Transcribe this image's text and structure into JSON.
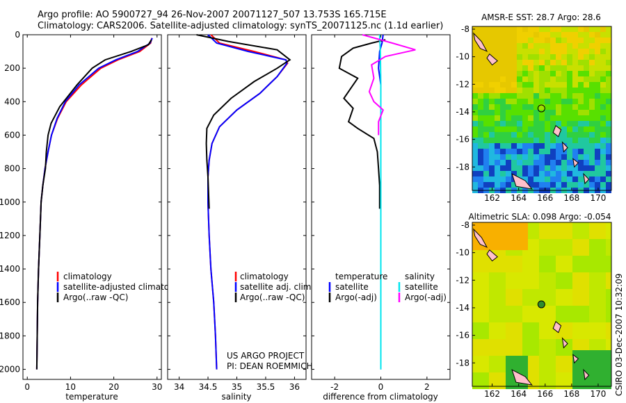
{
  "header": {
    "line1": "Argo profile: AO 5900727_94 26-Nov-2007 20071127_507 13.753S 165.715E",
    "line2": "Climatology: CARS2006. Satellite-adjusted climatology: synTS_20071125.nc (1.1d earlier)"
  },
  "colors": {
    "climatology": "#ff0000",
    "satellite": "#0000ff",
    "argo": "#000000",
    "salinity_satellite": "#00e5ee",
    "salinity_argo": "#ff00ff",
    "land": "#ffc0cb"
  },
  "chart_data": [
    {
      "type": "line",
      "xlabel": "temperature",
      "xlim": [
        -1,
        31
      ],
      "xticks": [
        0,
        10,
        20,
        30
      ],
      "ylim": [
        2060,
        0
      ],
      "yticks": [
        0,
        200,
        400,
        600,
        800,
        1000,
        1200,
        1400,
        1600,
        1800,
        2000
      ],
      "legend": [
        "climatology",
        "satellite-adjusted climatolog",
        "Argo(..raw -QC)"
      ],
      "series": [
        {
          "name": "climatology",
          "color": "#ff0000",
          "x": [
            28.8,
            28.5,
            26.0,
            21.0,
            17.0,
            12.5,
            9.0,
            7.0,
            5.6,
            4.8,
            4.1,
            3.6,
            3.2,
            2.9,
            2.6,
            2.4,
            2.3,
            2.2
          ],
          "y": [
            20,
            50,
            100,
            150,
            200,
            300,
            400,
            500,
            600,
            700,
            800,
            900,
            1000,
            1200,
            1400,
            1600,
            1800,
            2000
          ]
        },
        {
          "name": "satellite-adjusted climatolog",
          "color": "#0000ff",
          "x": [
            28.9,
            28.4,
            25.5,
            20.5,
            16.5,
            12.0,
            8.8,
            6.9,
            5.6,
            4.8,
            4.1,
            3.6,
            3.2,
            2.9,
            2.6,
            2.4,
            2.3,
            2.2
          ],
          "y": [
            20,
            50,
            100,
            150,
            200,
            300,
            400,
            500,
            600,
            700,
            800,
            900,
            1000,
            1200,
            1400,
            1600,
            1800,
            2000
          ]
        },
        {
          "name": "Argo(..raw -QC)",
          "color": "#000000",
          "x": [
            28.7,
            28.0,
            24.0,
            18.0,
            15.0,
            11.5,
            7.5,
            5.5,
            4.8,
            4.4,
            4.2,
            3.6,
            3.2,
            2.9,
            2.6,
            2.4,
            2.3,
            2.2
          ],
          "y": [
            30,
            60,
            100,
            150,
            200,
            300,
            430,
            530,
            600,
            700,
            800,
            900,
            1000,
            1200,
            1400,
            1600,
            1800,
            2000
          ]
        }
      ]
    },
    {
      "type": "line",
      "xlabel": "salinity",
      "xlim": [
        33.8,
        36.2
      ],
      "xticks": [
        34,
        34.5,
        35,
        35.5,
        36
      ],
      "ylim": [
        2060,
        0
      ],
      "legend": [
        "climatology",
        "satellite adj. clim.",
        "Argo(..raw -QC)"
      ],
      "annotation": [
        "US ARGO PROJECT",
        "PI: DEAN ROEMMICH"
      ],
      "series": [
        {
          "name": "climatology",
          "color": "#ff0000",
          "x": [
            34.55,
            34.7,
            35.3,
            35.85,
            35.88,
            35.7,
            35.4,
            35.0,
            34.7,
            34.57,
            34.52,
            34.5,
            34.5,
            34.52,
            34.55,
            34.6,
            34.63,
            34.65
          ],
          "y": [
            0,
            50,
            100,
            150,
            170,
            250,
            350,
            450,
            550,
            650,
            750,
            850,
            1000,
            1200,
            1400,
            1600,
            1800,
            2000
          ]
        },
        {
          "name": "satellite adj. clim.",
          "color": "#0000ff",
          "x": [
            34.5,
            34.65,
            35.2,
            35.85,
            35.87,
            35.7,
            35.4,
            35.0,
            34.7,
            34.57,
            34.52,
            34.5,
            34.5,
            34.52,
            34.55,
            34.6,
            34.63,
            34.65
          ],
          "y": [
            0,
            50,
            100,
            150,
            170,
            250,
            350,
            450,
            550,
            650,
            750,
            850,
            1000,
            1200,
            1400,
            1600,
            1800,
            2000
          ]
        },
        {
          "name": "Argo(..raw -QC)",
          "color": "#000000",
          "x": [
            34.3,
            34.85,
            35.7,
            35.92,
            35.7,
            35.3,
            34.9,
            34.6,
            34.48,
            34.47,
            34.48,
            34.5,
            34.52
          ],
          "y": [
            0,
            40,
            90,
            150,
            200,
            280,
            380,
            480,
            560,
            650,
            750,
            850,
            1040
          ]
        }
      ]
    },
    {
      "type": "line",
      "xlabel": "difference from climatology",
      "xlim": [
        -3,
        3
      ],
      "xticks": [
        -2,
        0,
        2
      ],
      "ylim": [
        2060,
        0
      ],
      "legend_left": [
        "temperature",
        "satellite",
        "Argo(-adj)"
      ],
      "legend_right": [
        "salinity",
        "satellite",
        "Argo(-adj)"
      ],
      "series": [
        {
          "name": "temperature satellite",
          "color": "#0000ff",
          "x": [
            0.1,
            0.05,
            -0.05,
            -0.1,
            0.0,
            0.0,
            0.0,
            0.0,
            0.0,
            0.0
          ],
          "y": [
            0,
            50,
            100,
            200,
            300,
            500,
            800,
            1000,
            1500,
            2000
          ]
        },
        {
          "name": "temperature Argo(-adj)",
          "color": "#000000",
          "x": [
            0.2,
            -0.4,
            -1.2,
            -1.7,
            -1.8,
            -1.0,
            -1.6,
            -1.2,
            -1.4,
            -1.0,
            -0.3,
            -0.15,
            -0.1,
            -0.05,
            -0.05
          ],
          "y": [
            30,
            50,
            80,
            130,
            200,
            260,
            380,
            440,
            520,
            560,
            620,
            700,
            800,
            900,
            1040
          ]
        },
        {
          "name": "salinity satellite",
          "color": "#00e5ee",
          "x": [
            -0.05,
            -0.02,
            0.0,
            0.0,
            0.0,
            0.0
          ],
          "y": [
            0,
            100,
            300,
            800,
            1500,
            2000
          ]
        },
        {
          "name": "salinity Argo(-adj)",
          "color": "#ff00ff",
          "x": [
            -0.8,
            0.5,
            1.5,
            0.2,
            -0.4,
            -0.3,
            -0.5,
            -0.3,
            0.1,
            -0.1,
            -0.1
          ],
          "y": [
            0,
            50,
            90,
            130,
            180,
            260,
            340,
            400,
            450,
            520,
            600
          ]
        }
      ]
    },
    {
      "type": "heatmap",
      "title": "AMSR-E SST: 28.7 Argo: 28.6",
      "xticks": [
        162,
        164,
        166,
        168,
        170
      ],
      "yticks": [
        -8,
        -10,
        -12,
        -14,
        -16,
        -18
      ],
      "xlim": [
        160.5,
        171.0
      ],
      "ylim": [
        -19.7,
        -7.8
      ],
      "marker": {
        "lon": 165.715,
        "lat": -13.753
      }
    },
    {
      "type": "heatmap",
      "title": "Altimetric SLA: 0.098 Argo: -0.054",
      "xticks": [
        162,
        164,
        166,
        168,
        170
      ],
      "yticks": [
        -8,
        -10,
        -12,
        -14,
        -16,
        -18
      ],
      "xlim": [
        160.5,
        171.0
      ],
      "ylim": [
        -19.7,
        -7.8
      ],
      "marker": {
        "lon": 165.715,
        "lat": -13.753
      }
    }
  ],
  "credit": "CSIRO 03-Dec-2007 10:32:09"
}
